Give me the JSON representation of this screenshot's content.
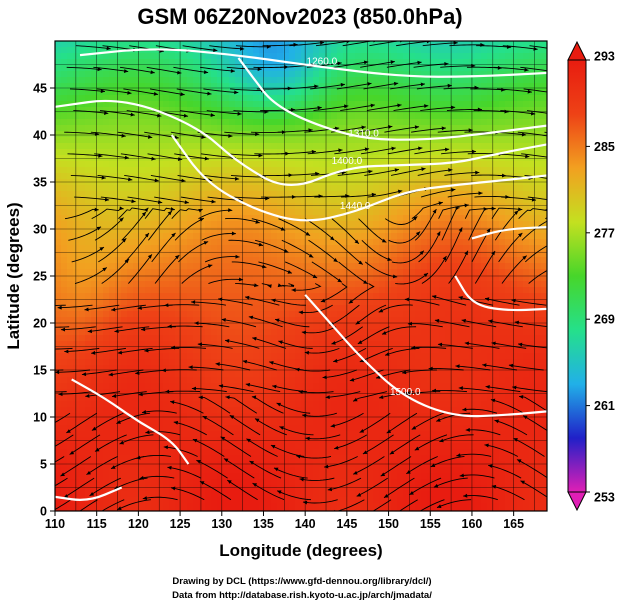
{
  "chart_data": {
    "type": "heatmap",
    "title": "GSM 06Z20Nov2023 (850.0hPa)",
    "xlabel": "Longitude (degrees)",
    "ylabel": "Latitude  (degrees)",
    "xlim": [
      110,
      169
    ],
    "ylim": [
      0,
      50
    ],
    "x_ticks": [
      110,
      115,
      120,
      125,
      130,
      135,
      140,
      145,
      150,
      155,
      160,
      165
    ],
    "y_ticks": [
      0,
      5,
      10,
      15,
      20,
      25,
      30,
      35,
      40,
      45
    ],
    "grid": true,
    "colorbar": {
      "min": 253,
      "max": 293,
      "ticks": [
        293,
        285,
        277,
        269,
        261,
        253
      ],
      "colors": [
        "#e01fb5",
        "#2020c8",
        "#21b0e8",
        "#25e08a",
        "#47d62a",
        "#c4e020",
        "#f2a020",
        "#ee4216",
        "#e81c10"
      ]
    },
    "contours": [
      {
        "label": "1260.0",
        "path": [
          [
            113,
            48.5
          ],
          [
            122,
            49.3
          ],
          [
            132,
            48.5
          ],
          [
            142,
            47.2
          ],
          [
            152,
            46.2
          ],
          [
            160,
            46.2
          ],
          [
            169,
            46.6
          ]
        ]
      },
      {
        "label": "1310.0",
        "path": [
          [
            132,
            48.2
          ],
          [
            134,
            45.8
          ],
          [
            136,
            43.5
          ],
          [
            140,
            41.5
          ],
          [
            147,
            39.5
          ],
          [
            155,
            39.5
          ],
          [
            162,
            40.2
          ],
          [
            169,
            41
          ]
        ]
      },
      {
        "label": "1400.0",
        "path": [
          [
            110,
            43
          ],
          [
            118,
            44
          ],
          [
            127,
            41
          ],
          [
            132,
            37
          ],
          [
            138,
            34
          ],
          [
            145,
            36.6
          ],
          [
            152,
            36.8
          ],
          [
            158,
            37
          ],
          [
            163,
            38
          ],
          [
            169,
            39
          ]
        ]
      },
      {
        "label": "1440.0",
        "path": [
          [
            124,
            40
          ],
          [
            128,
            35
          ],
          [
            134,
            32
          ],
          [
            140,
            30.6
          ],
          [
            146,
            31.8
          ],
          [
            152,
            34
          ],
          [
            158,
            34.7
          ],
          [
            164,
            35.2
          ],
          [
            169,
            35.7
          ]
        ]
      },
      {
        "label": "",
        "path": [
          [
            160,
            29
          ],
          [
            164,
            30
          ],
          [
            169,
            30.2
          ]
        ]
      },
      {
        "label": "",
        "path": [
          [
            158,
            25
          ],
          [
            160,
            22
          ],
          [
            164,
            21.3
          ],
          [
            169,
            21.5
          ]
        ]
      },
      {
        "label": "1500.0",
        "path": [
          [
            140,
            23
          ],
          [
            143,
            20
          ],
          [
            147,
            16
          ],
          [
            152,
            12
          ],
          [
            158,
            10
          ],
          [
            164,
            10.2
          ],
          [
            169,
            10.6
          ]
        ]
      },
      {
        "label": "",
        "path": [
          [
            112,
            14
          ],
          [
            116,
            12
          ],
          [
            120,
            9.5
          ],
          [
            124,
            7.5
          ],
          [
            126,
            5
          ]
        ]
      },
      {
        "label": "",
        "path": [
          [
            110,
            1.5
          ],
          [
            114,
            1
          ],
          [
            118,
            2.5
          ]
        ]
      }
    ]
  },
  "credits": {
    "line1": "Drawing by DCL (https://www.gfd-dennou.org/library/dcl/)",
    "line2": "Data from http://database.rish.kyoto-u.ac.jp/arch/jmadata/"
  }
}
